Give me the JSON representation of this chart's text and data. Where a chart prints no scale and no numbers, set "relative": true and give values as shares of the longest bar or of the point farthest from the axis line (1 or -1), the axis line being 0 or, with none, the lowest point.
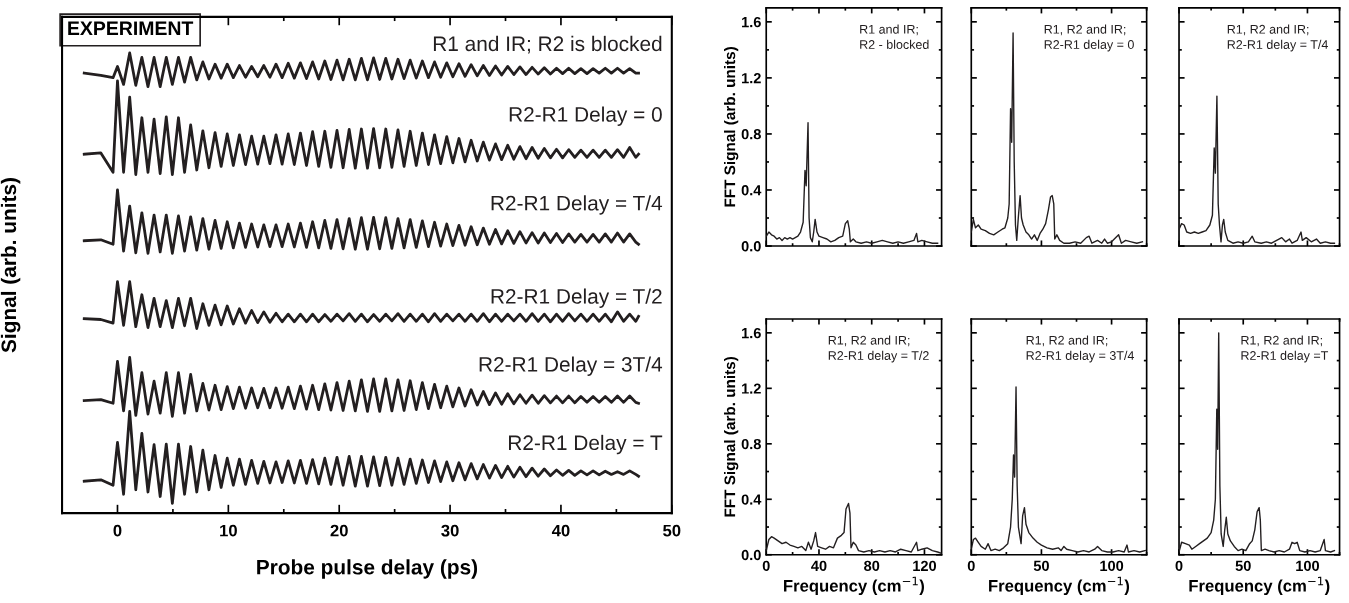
{
  "chart_data": [
    {
      "type": "line",
      "relative": true,
      "xlabel": "Probe pulse delay (ps)",
      "ylabel": "Signal (arb. units)",
      "annotations": [
        "EXPERIMENT"
      ],
      "xlim": [
        -5,
        50
      ],
      "xticks": [
        0,
        10,
        20,
        30,
        40,
        50
      ],
      "x": [
        -3,
        -1.5,
        -0.4,
        0,
        0.55,
        1.1,
        1.65,
        2.2,
        2.75,
        3.3,
        3.85,
        4.4,
        4.95,
        5.5,
        6.05,
        6.6,
        7.15,
        7.7,
        8.25,
        8.8,
        9.35,
        9.9,
        10.45,
        11,
        11.55,
        12.1,
        12.65,
        13.2,
        13.75,
        14.3,
        14.85,
        15.4,
        15.95,
        16.5,
        17.05,
        17.6,
        18.15,
        18.7,
        19.25,
        19.8,
        20.35,
        20.9,
        21.45,
        22,
        22.55,
        23.1,
        23.65,
        24.2,
        24.75,
        25.3,
        25.85,
        26.4,
        26.95,
        27.5,
        28.05,
        28.6,
        29.15,
        29.7,
        30.25,
        30.8,
        31.35,
        31.9,
        32.45,
        33,
        33.55,
        34.1,
        34.65,
        35.2,
        35.75,
        36.3,
        36.85,
        37.4,
        37.95,
        38.5,
        39.05,
        39.6,
        40.15,
        40.7,
        41.25,
        41.8,
        42.35,
        42.9,
        43.45,
        44,
        44.55,
        45.1,
        45.65,
        46.2,
        46.75,
        47
      ],
      "series": [
        {
          "name": "R1 and IR; R2 is blocked",
          "color": "#231f20",
          "values": [
            0.955,
            0.95,
            0.945,
            0.97,
            0.93,
            1.0,
            0.928,
            0.99,
            0.925,
            0.99,
            0.925,
            0.99,
            0.93,
            0.99,
            0.935,
            0.99,
            0.94,
            0.98,
            0.942,
            0.975,
            0.944,
            0.975,
            0.945,
            0.972,
            0.946,
            0.97,
            0.947,
            0.972,
            0.946,
            0.975,
            0.945,
            0.977,
            0.944,
            0.978,
            0.943,
            0.98,
            0.942,
            0.982,
            0.941,
            0.984,
            0.94,
            0.986,
            0.94,
            0.988,
            0.94,
            0.989,
            0.941,
            0.988,
            0.942,
            0.986,
            0.943,
            0.984,
            0.944,
            0.982,
            0.945,
            0.98,
            0.946,
            0.978,
            0.947,
            0.976,
            0.948,
            0.974,
            0.949,
            0.972,
            0.95,
            0.971,
            0.951,
            0.97,
            0.952,
            0.969,
            0.952,
            0.968,
            0.953,
            0.967,
            0.953,
            0.966,
            0.954,
            0.966,
            0.954,
            0.965,
            0.954,
            0.965,
            0.955,
            0.966,
            0.955,
            0.966,
            0.955,
            0.965,
            0.955,
            0.955
          ]
        },
        {
          "name": "R2-R1 Delay = 0",
          "color": "#231f20",
          "values": [
            0.775,
            0.778,
            0.735,
            0.938,
            0.735,
            0.902,
            0.73,
            0.856,
            0.735,
            0.853,
            0.732,
            0.858,
            0.73,
            0.856,
            0.735,
            0.84,
            0.74,
            0.827,
            0.745,
            0.823,
            0.748,
            0.82,
            0.75,
            0.818,
            0.752,
            0.815,
            0.753,
            0.815,
            0.754,
            0.818,
            0.753,
            0.82,
            0.752,
            0.822,
            0.75,
            0.825,
            0.748,
            0.826,
            0.746,
            0.828,
            0.745,
            0.83,
            0.744,
            0.831,
            0.744,
            0.832,
            0.745,
            0.831,
            0.746,
            0.829,
            0.748,
            0.826,
            0.75,
            0.822,
            0.752,
            0.818,
            0.754,
            0.814,
            0.756,
            0.81,
            0.758,
            0.806,
            0.76,
            0.802,
            0.762,
            0.798,
            0.763,
            0.795,
            0.764,
            0.792,
            0.765,
            0.79,
            0.766,
            0.788,
            0.767,
            0.786,
            0.767,
            0.785,
            0.768,
            0.784,
            0.768,
            0.784,
            0.768,
            0.784,
            0.768,
            0.785,
            0.768,
            0.79,
            0.768,
            0.775
          ]
        },
        {
          "name": "R2-R1 Delay = T/4",
          "color": "#231f20",
          "values": [
            0.583,
            0.585,
            0.575,
            0.696,
            0.56,
            0.66,
            0.556,
            0.645,
            0.555,
            0.64,
            0.558,
            0.64,
            0.555,
            0.638,
            0.56,
            0.636,
            0.562,
            0.632,
            0.564,
            0.628,
            0.566,
            0.625,
            0.567,
            0.622,
            0.568,
            0.62,
            0.569,
            0.618,
            0.57,
            0.618,
            0.57,
            0.62,
            0.569,
            0.622,
            0.568,
            0.625,
            0.567,
            0.628,
            0.566,
            0.63,
            0.565,
            0.632,
            0.564,
            0.634,
            0.564,
            0.635,
            0.565,
            0.634,
            0.566,
            0.632,
            0.567,
            0.63,
            0.568,
            0.627,
            0.57,
            0.624,
            0.571,
            0.62,
            0.572,
            0.617,
            0.573,
            0.614,
            0.574,
            0.611,
            0.575,
            0.608,
            0.576,
            0.605,
            0.577,
            0.603,
            0.578,
            0.601,
            0.578,
            0.6,
            0.579,
            0.599,
            0.579,
            0.598,
            0.58,
            0.597,
            0.58,
            0.597,
            0.58,
            0.598,
            0.58,
            0.6,
            0.58,
            0.598,
            0.58,
            0.575
          ]
        },
        {
          "name": "R2-R1 Delay = T/2",
          "color": "#231f20",
          "values": [
            0.41,
            0.408,
            0.4,
            0.492,
            0.395,
            0.492,
            0.392,
            0.463,
            0.39,
            0.455,
            0.392,
            0.45,
            0.39,
            0.455,
            0.394,
            0.455,
            0.388,
            0.443,
            0.395,
            0.44,
            0.396,
            0.438,
            0.398,
            0.432,
            0.4,
            0.428,
            0.401,
            0.425,
            0.402,
            0.422,
            0.403,
            0.42,
            0.403,
            0.42,
            0.403,
            0.42,
            0.403,
            0.419,
            0.404,
            0.42,
            0.405,
            0.421,
            0.404,
            0.42,
            0.403,
            0.419,
            0.404,
            0.42,
            0.405,
            0.421,
            0.404,
            0.42,
            0.404,
            0.42,
            0.403,
            0.421,
            0.404,
            0.42,
            0.405,
            0.42,
            0.404,
            0.42,
            0.404,
            0.421,
            0.403,
            0.42,
            0.404,
            0.42,
            0.405,
            0.42,
            0.404,
            0.421,
            0.404,
            0.42,
            0.403,
            0.42,
            0.404,
            0.421,
            0.405,
            0.42,
            0.404,
            0.42,
            0.404,
            0.42,
            0.403,
            0.425,
            0.404,
            0.42,
            0.404,
            0.415
          ]
        },
        {
          "name": "R2-R1 Delay = 3T/4",
          "color": "#231f20",
          "values": [
            0.228,
            0.23,
            0.222,
            0.315,
            0.205,
            0.324,
            0.195,
            0.29,
            0.198,
            0.271,
            0.2,
            0.29,
            0.193,
            0.29,
            0.2,
            0.286,
            0.205,
            0.266,
            0.207,
            0.262,
            0.208,
            0.259,
            0.21,
            0.258,
            0.211,
            0.256,
            0.212,
            0.255,
            0.212,
            0.256,
            0.211,
            0.258,
            0.21,
            0.26,
            0.209,
            0.262,
            0.208,
            0.265,
            0.207,
            0.268,
            0.206,
            0.271,
            0.205,
            0.274,
            0.204,
            0.276,
            0.204,
            0.276,
            0.205,
            0.274,
            0.206,
            0.272,
            0.208,
            0.268,
            0.21,
            0.264,
            0.212,
            0.26,
            0.214,
            0.256,
            0.216,
            0.252,
            0.218,
            0.248,
            0.219,
            0.245,
            0.22,
            0.243,
            0.221,
            0.241,
            0.222,
            0.24,
            0.222,
            0.239,
            0.223,
            0.238,
            0.223,
            0.238,
            0.223,
            0.237,
            0.224,
            0.237,
            0.224,
            0.237,
            0.224,
            0.238,
            0.224,
            0.238,
            0.224,
            0.222
          ]
        },
        {
          "name": "R2-R1 Delay = T",
          "color": "#231f20",
          "values": [
            0.049,
            0.052,
            0.04,
            0.135,
            0.02,
            0.204,
            0.03,
            0.155,
            0.025,
            0.13,
            0.015,
            0.131,
            0.0,
            0.131,
            0.02,
            0.126,
            0.025,
            0.118,
            0.03,
            0.106,
            0.035,
            0.1,
            0.04,
            0.098,
            0.042,
            0.095,
            0.044,
            0.093,
            0.045,
            0.092,
            0.046,
            0.094,
            0.045,
            0.095,
            0.044,
            0.097,
            0.043,
            0.1,
            0.042,
            0.102,
            0.04,
            0.104,
            0.038,
            0.104,
            0.038,
            0.103,
            0.039,
            0.102,
            0.04,
            0.1,
            0.042,
            0.098,
            0.044,
            0.096,
            0.046,
            0.094,
            0.048,
            0.092,
            0.05,
            0.09,
            0.052,
            0.088,
            0.054,
            0.086,
            0.056,
            0.084,
            0.057,
            0.082,
            0.058,
            0.08,
            0.059,
            0.078,
            0.06,
            0.076,
            0.061,
            0.074,
            0.062,
            0.073,
            0.062,
            0.072,
            0.063,
            0.072,
            0.063,
            0.071,
            0.064,
            0.07,
            0.064,
            0.072,
            0.064,
            0.06
          ]
        }
      ]
    },
    {
      "type": "line",
      "ylabel": "FFT Signal (arb. units)",
      "annotations": [
        "R1 and IR;\nR2 - blocked"
      ],
      "tick_labels": "y",
      "xlim": [
        0,
        133
      ],
      "xticks": [
        0,
        40,
        80,
        120
      ],
      "ylim": [
        0,
        1.7
      ],
      "yticks": [
        {
          "value": 0,
          "label": "0.0"
        },
        0.4,
        0.8,
        1.2,
        1.6
      ],
      "x": [
        0,
        2,
        4,
        6,
        8,
        10,
        12,
        14,
        16,
        18,
        20,
        22,
        24,
        26,
        28,
        29.4,
        30.3,
        31.7,
        32.5,
        33.5,
        34.9,
        36,
        37.1,
        38.5,
        40,
        43,
        46,
        49,
        52,
        55,
        58,
        60,
        61.8,
        63,
        63.8,
        66,
        68,
        72,
        76,
        80,
        84,
        88,
        92,
        96,
        100,
        104,
        108,
        112,
        114,
        115,
        118,
        122,
        126,
        130
      ],
      "series": [
        {
          "color": "#231f20",
          "values": [
            0.07,
            0.1,
            0.08,
            0.07,
            0.05,
            0.06,
            0.04,
            0.06,
            0.05,
            0.06,
            0.05,
            0.06,
            0.07,
            0.1,
            0.17,
            0.54,
            0.43,
            0.88,
            0.2,
            0.06,
            0.03,
            0.1,
            0.19,
            0.1,
            0.07,
            0.06,
            0.05,
            0.03,
            0.04,
            0.06,
            0.07,
            0.16,
            0.18,
            0.12,
            0.03,
            0.05,
            0.03,
            0.02,
            0.03,
            0.02,
            0.03,
            0.04,
            0.03,
            0.02,
            0.03,
            0.02,
            0.03,
            0.04,
            0.09,
            0.03,
            0.04,
            0.03,
            0.02,
            0.02
          ]
        }
      ]
    },
    {
      "type": "line",
      "annotations": [
        "R1, R2 and IR;\nR2-R1 delay = 0"
      ],
      "tick_labels": false,
      "xlim": [
        0,
        125
      ],
      "xticks": [
        0,
        50,
        100
      ],
      "ylim": [
        0,
        1.7
      ],
      "yticks": [
        0,
        0.4,
        0.8,
        1.2,
        1.6
      ],
      "x": [
        0,
        1.5,
        3,
        5,
        7,
        10,
        13,
        16,
        19,
        22,
        24,
        26,
        27,
        28,
        28.8,
        29.8,
        30.6,
        31.5,
        32.4,
        33.5,
        34.8,
        35.8,
        37,
        39,
        41,
        43,
        45,
        47,
        49,
        51,
        53,
        55,
        56.5,
        57.7,
        58.8,
        59.5,
        61,
        63,
        66,
        70,
        74,
        78,
        82,
        84,
        86,
        90,
        93,
        95,
        97,
        100,
        105,
        107,
        110,
        114,
        118,
        122
      ],
      "series": [
        {
          "color": "#231f20",
          "values": [
            0.1,
            0.19,
            0.13,
            0.15,
            0.12,
            0.11,
            0.09,
            0.08,
            0.1,
            0.12,
            0.13,
            0.2,
            0.3,
            0.98,
            0.74,
            1.52,
            0.6,
            0.15,
            0.04,
            0.2,
            0.36,
            0.2,
            0.15,
            0.1,
            0.08,
            0.05,
            0.08,
            0.04,
            0.09,
            0.12,
            0.16,
            0.26,
            0.35,
            0.36,
            0.3,
            0.05,
            0.08,
            0.04,
            0.02,
            0.02,
            0.03,
            0.02,
            0.06,
            0.07,
            0.02,
            0.04,
            0.02,
            0.05,
            0.02,
            0.03,
            0.08,
            0.02,
            0.04,
            0.03,
            0.02,
            0.03
          ]
        }
      ]
    },
    {
      "type": "line",
      "annotations": [
        "R1, R2 and IR;\nR2-R1 delay = T/4"
      ],
      "tick_labels": false,
      "xlim": [
        0,
        125
      ],
      "xticks": [
        0,
        50,
        100
      ],
      "ylim": [
        0,
        1.7
      ],
      "yticks": [
        0,
        0.4,
        0.8,
        1.2,
        1.6
      ],
      "x": [
        0,
        2,
        4,
        6,
        9,
        12,
        15,
        18,
        21,
        24,
        26,
        27.4,
        28.3,
        29.5,
        30.5,
        31.5,
        32.7,
        33.8,
        34.8,
        36,
        38,
        42,
        46,
        50,
        54,
        57,
        59,
        64,
        68,
        72,
        76,
        80,
        83,
        86,
        88,
        92,
        95,
        96,
        99,
        103,
        107,
        110,
        114,
        118,
        121
      ],
      "series": [
        {
          "color": "#231f20",
          "values": [
            0.12,
            0.16,
            0.15,
            0.1,
            0.09,
            0.1,
            0.09,
            0.1,
            0.11,
            0.15,
            0.22,
            0.7,
            0.52,
            1.07,
            0.3,
            0.15,
            0.03,
            0.15,
            0.19,
            0.1,
            0.04,
            0.02,
            0.03,
            0.02,
            0.03,
            0.07,
            0.03,
            0.02,
            0.03,
            0.02,
            0.04,
            0.06,
            0.03,
            0.05,
            0.02,
            0.04,
            0.1,
            0.04,
            0.06,
            0.03,
            0.05,
            0.02,
            0.03,
            0.02,
            0.02
          ]
        }
      ]
    },
    {
      "type": "line",
      "xlabel": "Frequency (cm$^{−1}$)",
      "ylabel": "FFT Signal (arb. units)",
      "annotations": [
        "R1, R2 and IR;\nR2-R1 delay = T/2"
      ],
      "xlim": [
        0,
        133
      ],
      "xticks": [
        0,
        40,
        80,
        120
      ],
      "ylim": [
        0,
        1.7
      ],
      "yticks": [
        {
          "value": 0,
          "label": "0.0"
        },
        0.4,
        0.8,
        1.2,
        1.6
      ],
      "x": [
        0,
        2,
        4,
        6,
        9,
        12,
        15,
        18,
        21,
        24,
        27,
        30,
        32,
        34,
        36,
        37.4,
        39,
        42,
        45,
        48,
        51,
        54,
        57,
        59,
        60.5,
        62.4,
        63.5,
        64.3,
        66,
        68,
        70,
        74,
        78,
        82,
        86,
        90,
        94,
        98,
        102,
        106,
        110,
        114,
        115,
        118,
        122,
        126,
        130,
        133
      ],
      "series": [
        {
          "color": "#231f20",
          "values": [
            0.03,
            0.11,
            0.13,
            0.12,
            0.1,
            0.08,
            0.09,
            0.07,
            0.06,
            0.05,
            0.06,
            0.03,
            0.09,
            0.04,
            0.1,
            0.16,
            0.06,
            0.05,
            0.04,
            0.06,
            0.05,
            0.12,
            0.14,
            0.16,
            0.33,
            0.37,
            0.3,
            0.05,
            0.09,
            0.07,
            0.03,
            0.02,
            0.03,
            0.02,
            0.03,
            0.02,
            0.03,
            0.02,
            0.04,
            0.03,
            0.02,
            0.09,
            0.03,
            0.04,
            0.05,
            0.03,
            0.02,
            0.01
          ]
        }
      ]
    },
    {
      "type": "line",
      "xlabel": "Frequency (cm$^{−1}$)",
      "annotations": [
        "R1, R2 and IR;\nR2-R1 delay = 3T/4"
      ],
      "tick_labels": "x",
      "xlim": [
        0,
        125
      ],
      "xticks": [
        0,
        50,
        100
      ],
      "ylim": [
        0,
        1.7
      ],
      "yticks": [
        0,
        0.4,
        0.8,
        1.2,
        1.6
      ],
      "x": [
        0,
        1.5,
        3,
        5,
        7,
        10,
        12,
        14,
        17,
        20,
        23,
        26,
        28,
        29.2,
        30.1,
        30.9,
        31.9,
        32.7,
        33.6,
        35.5,
        36.6,
        37.9,
        39,
        41,
        44,
        47,
        50,
        54,
        58,
        62,
        64,
        66,
        68,
        72,
        76,
        80,
        84,
        88,
        90,
        93,
        97,
        101,
        105,
        109,
        111,
        112,
        116,
        120,
        124
      ],
      "series": [
        {
          "color": "#231f20",
          "values": [
            0.04,
            0.11,
            0.12,
            0.09,
            0.06,
            0.04,
            0.08,
            0.03,
            0.04,
            0.03,
            0.05,
            0.08,
            0.2,
            0.4,
            0.72,
            0.56,
            1.21,
            0.5,
            0.2,
            0.08,
            0.28,
            0.34,
            0.22,
            0.16,
            0.12,
            0.09,
            0.07,
            0.05,
            0.04,
            0.05,
            0.03,
            0.06,
            0.04,
            0.03,
            0.02,
            0.03,
            0.02,
            0.04,
            0.06,
            0.03,
            0.02,
            0.02,
            0.03,
            0.02,
            0.07,
            0.02,
            0.03,
            0.02,
            0.03
          ]
        }
      ]
    },
    {
      "type": "line",
      "xlabel": "Frequency (cm$^{−1}$)",
      "annotations": [
        "R1, R2 and IR;\nR2-R1 delay =T"
      ],
      "tick_labels": "x",
      "xlim": [
        0,
        125
      ],
      "xticks": [
        0,
        50,
        100
      ],
      "ylim": [
        0,
        1.7
      ],
      "yticks": [
        0,
        0.4,
        0.8,
        1.2,
        1.6
      ],
      "x": [
        0,
        2,
        5,
        8,
        10,
        13,
        16,
        19,
        22,
        25,
        27,
        28.3,
        29.4,
        30.1,
        30.9,
        31.8,
        32.8,
        34.4,
        35.6,
        36.8,
        38,
        40,
        43,
        46,
        49,
        52,
        55,
        57,
        59,
        60.8,
        62.4,
        63.3,
        64.1,
        67,
        70,
        74,
        78,
        82,
        86,
        88,
        90,
        92,
        94,
        98,
        102,
        106,
        110,
        113,
        114,
        118,
        121
      ],
      "series": [
        {
          "color": "#231f20",
          "values": [
            0.02,
            0.09,
            0.08,
            0.07,
            0.04,
            0.06,
            0.08,
            0.1,
            0.12,
            0.16,
            0.25,
            0.4,
            1.05,
            0.76,
            1.6,
            0.5,
            0.15,
            0.06,
            0.18,
            0.27,
            0.15,
            0.1,
            0.06,
            0.03,
            0.04,
            0.03,
            0.08,
            0.1,
            0.18,
            0.31,
            0.34,
            0.25,
            0.03,
            0.04,
            0.03,
            0.02,
            0.03,
            0.02,
            0.04,
            0.09,
            0.08,
            0.09,
            0.03,
            0.02,
            0.03,
            0.02,
            0.03,
            0.11,
            0.03,
            0.02,
            0.03
          ]
        }
      ]
    }
  ]
}
